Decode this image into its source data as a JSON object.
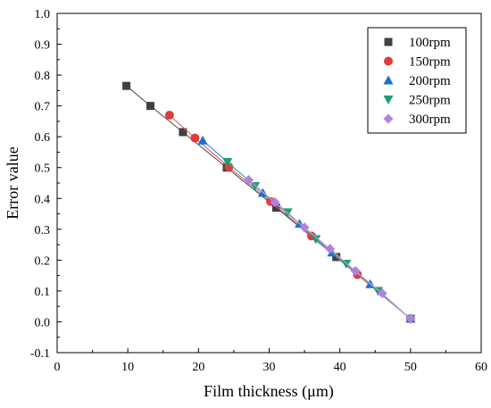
{
  "chart_data": {
    "type": "line",
    "xlabel": "Film thickness (μm)",
    "ylabel": "Error value",
    "xlim": [
      0,
      60
    ],
    "ylim": [
      -0.1,
      1.0
    ],
    "xticks": [
      0,
      10,
      20,
      30,
      40,
      50,
      60
    ],
    "xtick_labels": [
      "0",
      "10",
      "20",
      "30",
      "40",
      "50",
      "60"
    ],
    "yticks": [
      -0.1,
      0.0,
      0.1,
      0.2,
      0.3,
      0.4,
      0.5,
      0.6,
      0.7,
      0.8,
      0.9,
      1.0
    ],
    "ytick_labels": [
      "-0.1",
      "0.0",
      "0.1",
      "0.2",
      "0.3",
      "0.4",
      "0.5",
      "0.6",
      "0.7",
      "0.8",
      "0.9",
      "1.0"
    ],
    "grid": false,
    "legend_position": "top-right",
    "series": [
      {
        "name": "100rpm",
        "marker": "square",
        "color": "#404040",
        "line_color": "#555555",
        "x": [
          9.8,
          13.2,
          17.8,
          24.0,
          31.0,
          39.5,
          50.0
        ],
        "y": [
          0.765,
          0.7,
          0.615,
          0.5,
          0.37,
          0.21,
          0.01
        ]
      },
      {
        "name": "150rpm",
        "marker": "circle",
        "color": "#e03c3c",
        "line_color": "#e06060",
        "x": [
          15.9,
          19.5,
          24.3,
          30.2,
          36.0,
          42.5,
          50.0
        ],
        "y": [
          0.67,
          0.596,
          0.502,
          0.39,
          0.278,
          0.153,
          0.01
        ]
      },
      {
        "name": "200rpm",
        "marker": "triangle-up",
        "color": "#1f6fd1",
        "line_color": "#3a7fd9",
        "x": [
          20.6,
          29.1,
          34.3,
          38.9,
          44.3,
          50.0
        ],
        "y": [
          0.588,
          0.418,
          0.318,
          0.225,
          0.122,
          0.01
        ]
      },
      {
        "name": "250rpm",
        "marker": "triangle-down",
        "color": "#1e9e6e",
        "line_color": "#3fb08a",
        "x": [
          24.1,
          28.0,
          32.6,
          36.6,
          40.9,
          45.4,
          50.0
        ],
        "y": [
          0.518,
          0.44,
          0.355,
          0.268,
          0.188,
          0.1,
          0.01
        ]
      },
      {
        "name": "300rpm",
        "marker": "diamond",
        "color": "#b57fe0",
        "line_color": "#c59be6",
        "x": [
          27.1,
          30.8,
          35.0,
          38.6,
          42.2,
          46.0,
          50.0
        ],
        "y": [
          0.46,
          0.388,
          0.306,
          0.237,
          0.165,
          0.092,
          0.01
        ]
      }
    ]
  }
}
